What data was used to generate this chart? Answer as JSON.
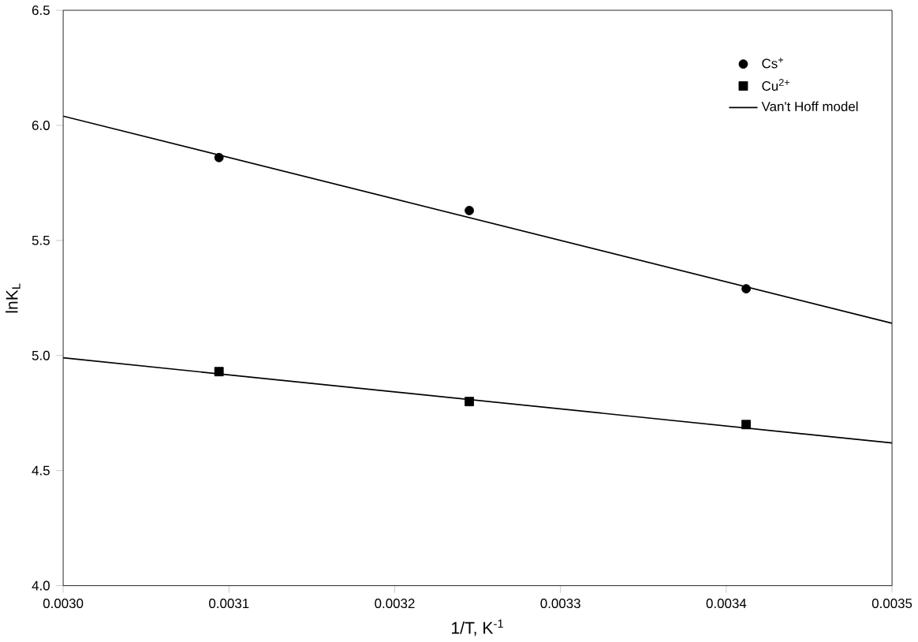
{
  "chart_data": {
    "type": "scatter",
    "xlabel": "1/T, K$^{-1}$",
    "ylabel": "lnK$_{L}$",
    "xlim": [
      0.003,
      0.0035
    ],
    "ylim": [
      4.0,
      6.5
    ],
    "xticks": [
      {
        "value": 0.003,
        "label": "0.0030"
      },
      {
        "value": 0.0031,
        "label": "0.0031"
      },
      {
        "value": 0.0032,
        "label": "0.0032"
      },
      {
        "value": 0.0033,
        "label": "0.0033"
      },
      {
        "value": 0.0034,
        "label": "0.0034"
      },
      {
        "value": 0.0035,
        "label": "0.0035"
      }
    ],
    "yticks": [
      {
        "value": 4.0,
        "label": "4.0"
      },
      {
        "value": 4.5,
        "label": "4.5"
      },
      {
        "value": 5.0,
        "label": "5.0"
      },
      {
        "value": 5.5,
        "label": "5.5"
      },
      {
        "value": 6.0,
        "label": "6.0"
      },
      {
        "value": 6.5,
        "label": "6.5"
      }
    ],
    "legend": "top right",
    "grid": false,
    "series": [
      {
        "name": "Cs$^{+}$",
        "marker": "circle",
        "color": "#000000",
        "x": [
          0.003094,
          0.003245,
          0.003412
        ],
        "values": [
          5.86,
          5.63,
          5.29
        ]
      },
      {
        "name": "Cu$^{2+}$",
        "marker": "square",
        "color": "#000000",
        "x": [
          0.003094,
          0.003245,
          0.003412
        ],
        "values": [
          4.93,
          4.8,
          4.7
        ]
      },
      {
        "name": "Van't Hoff model",
        "type": "line",
        "marker": "none",
        "line_style": "solid",
        "color": "#000000",
        "x": [
          0.003,
          0.0035
        ],
        "values": [
          6.04,
          5.14
        ]
      },
      {
        "type": "line",
        "marker": "none",
        "line_style": "solid",
        "color": "#000000",
        "x": [
          0.003,
          0.0035
        ],
        "values": [
          4.99,
          4.62
        ]
      }
    ]
  }
}
